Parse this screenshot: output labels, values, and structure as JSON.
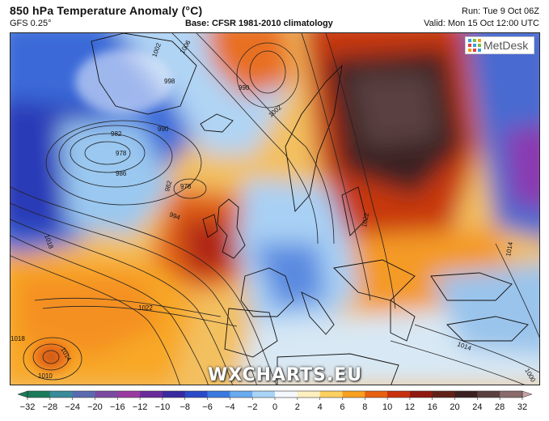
{
  "header": {
    "title": "850 hPa Temperature Anomaly (°C)",
    "model": "GFS 0.25°",
    "base": "Base: CFSR 1981-2010 climatology",
    "run": "Run: Tue 9 Oct 06Z",
    "valid": "Valid: Mon 15 Oct 12:00 UTC"
  },
  "logo": {
    "text": "MetDesk",
    "icon": "metdesk-grid-icon"
  },
  "watermark": "WXCHARTS.EU",
  "isobar_labels": [
    {
      "text": "1002"
    },
    {
      "text": "1006"
    },
    {
      "text": "998"
    },
    {
      "text": "990"
    },
    {
      "text": "990"
    },
    {
      "text": "982"
    },
    {
      "text": "978"
    },
    {
      "text": "986"
    },
    {
      "text": "978"
    },
    {
      "text": "982"
    },
    {
      "text": "994"
    },
    {
      "text": "1002"
    },
    {
      "text": "1018"
    },
    {
      "text": "1022"
    },
    {
      "text": "1018"
    },
    {
      "text": "1014"
    },
    {
      "text": "1010"
    },
    {
      "text": "1022"
    },
    {
      "text": "1014"
    },
    {
      "text": "1014"
    },
    {
      "text": "1000"
    }
  ],
  "colorbar": {
    "ticks": [
      "−32",
      "−28",
      "−24",
      "−20",
      "−16",
      "−12",
      "−10",
      "−8",
      "−6",
      "−4",
      "−2",
      "0",
      "2",
      "4",
      "6",
      "8",
      "10",
      "12",
      "16",
      "20",
      "24",
      "28",
      "32"
    ],
    "colors": [
      "#1a7a5a",
      "#3a8a9a",
      "#5a6ab0",
      "#7a4aa0",
      "#9a3aa0",
      "#6a2a9a",
      "#3a2aa0",
      "#2a4ac8",
      "#3a7ae0",
      "#6aaaf0",
      "#a8d4f8",
      "#f4f8ff",
      "#fff0c0",
      "#ffd060",
      "#f8a020",
      "#e86010",
      "#c83010",
      "#901810",
      "#602018",
      "#3a2020",
      "#5a4040",
      "#8a6a6a",
      "#c8a0a8"
    ]
  }
}
